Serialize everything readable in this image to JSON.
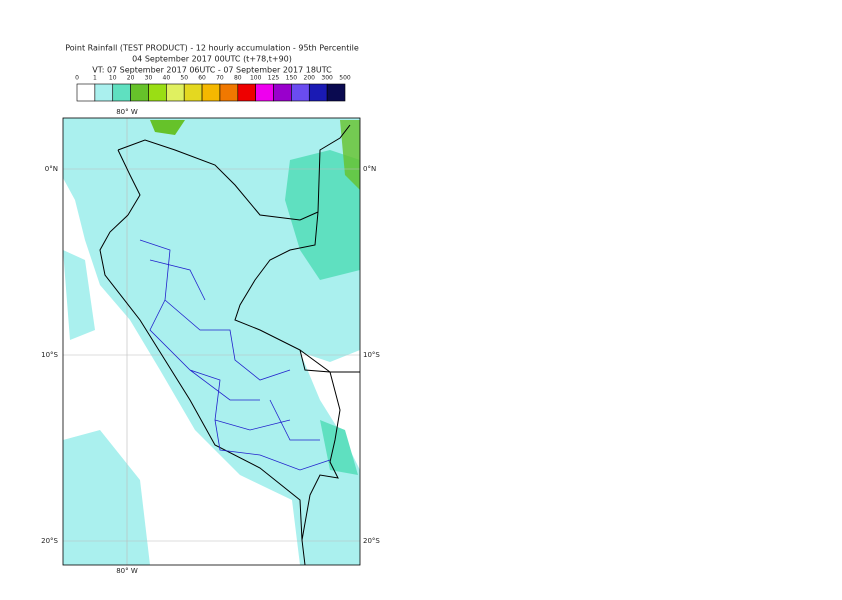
{
  "title": {
    "lines": [
      "Point Rainfall (TEST PRODUCT) - 12 hourly accumulation - 95th Percentile",
      "04 September 2017 00UTC (t+78,t+90)",
      "VT: 07 September 2017 06UTC - 07 September 2017 18UTC"
    ]
  },
  "legend": {
    "labels": [
      "0",
      "1",
      "10",
      "20",
      "30",
      "40",
      "50",
      "60",
      "70",
      "80",
      "100",
      "125",
      "150",
      "200",
      "300",
      "500"
    ],
    "colors": [
      "#ffffff",
      "#aaf0ee",
      "#5fe0c0",
      "#66c22a",
      "#9ade14",
      "#e0f060",
      "#e4d820",
      "#f5b800",
      "#f07800",
      "#ee0000",
      "#ee00ee",
      "#9900cc",
      "#6a4cf0",
      "#1a1ab4",
      "#0a0a50"
    ]
  },
  "grid_labels": {
    "longitude_top": "80° W",
    "longitude_bottom": "80° W",
    "latitude_left": [
      "0°N",
      "10°S",
      "20°S"
    ],
    "latitude_right": [
      "0°N",
      "10°S",
      "20°S"
    ]
  }
}
